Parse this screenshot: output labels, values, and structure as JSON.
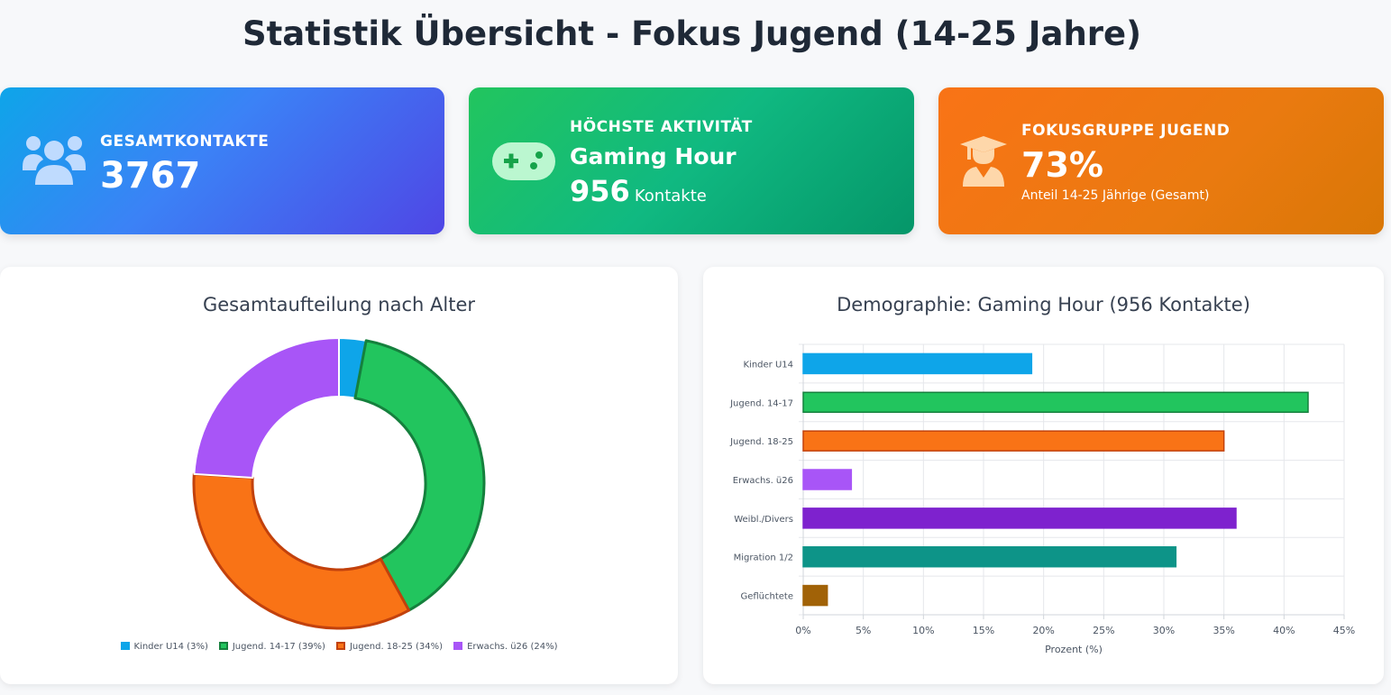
{
  "page": {
    "title": "Statistik Übersicht - Fokus Jugend (14-25 Jahre)"
  },
  "cards": {
    "total": {
      "label": "GESAMTKONTAKTE",
      "value": "3767",
      "icon": "users-icon",
      "color": "#3b82f6"
    },
    "activity": {
      "label": "HÖCHSTE AKTIVITÄT",
      "name": "Gaming Hour",
      "value": "956",
      "unit": "Kontakte",
      "icon": "gamepad-icon",
      "color": "#10b981"
    },
    "focus": {
      "label": "FOKUSGRUPPE JUGEND",
      "value": "73%",
      "subtitle": "Anteil 14-25 Jährige (Gesamt)",
      "icon": "graduate-icon",
      "color": "#f97316"
    }
  },
  "chart_data": [
    {
      "type": "pie",
      "title": "Gesamtaufteilung nach Alter",
      "donut": true,
      "legend_position": "bottom",
      "categories": [
        "Kinder U14 (3%)",
        "Jugend. 14-17 (39%)",
        "Jugend. 18-25 (34%)",
        "Erwachs. ü26 (24%)"
      ],
      "values": [
        3,
        39,
        34,
        24
      ],
      "colors": [
        "#0ea5e9",
        "#22c55e",
        "#f97316",
        "#a855f7"
      ],
      "borders": [
        "#ffffff",
        "#15803d",
        "#c2410c",
        "#ffffff"
      ]
    },
    {
      "type": "bar",
      "orientation": "horizontal",
      "title": "Demographie: Gaming Hour (956 Kontakte)",
      "categories": [
        "Kinder U14",
        "Jugend. 14-17",
        "Jugend. 18-25",
        "Erwachs. ü26",
        "Weibl./Divers",
        "Migration 1/2",
        "Geflüchtete"
      ],
      "values": [
        19,
        42,
        35,
        4,
        36,
        31,
        2
      ],
      "colors": [
        "#0ea5e9",
        "#22c55e",
        "#f97316",
        "#a855f7",
        "#7e22ce",
        "#0d9488",
        "#a16207"
      ],
      "borders": [
        "#0ea5e9",
        "#15803d",
        "#c2410c",
        "#a855f7",
        "#7e22ce",
        "#0d9488",
        "#a16207"
      ],
      "xlabel": "Prozent (%)",
      "ylabel": "",
      "xlim": [
        0,
        45
      ],
      "xticks": [
        "0%",
        "5%",
        "10%",
        "15%",
        "20%",
        "25%",
        "30%",
        "35%",
        "40%",
        "45%"
      ],
      "grid": true
    }
  ]
}
